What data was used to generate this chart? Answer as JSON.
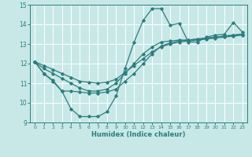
{
  "xlabel": "Humidex (Indice chaleur)",
  "background_color": "#c8e8e8",
  "grid_color": "#ffffff",
  "line_color": "#2d7d7d",
  "xlim": [
    -0.5,
    23.5
  ],
  "ylim": [
    9,
    15
  ],
  "xticks": [
    0,
    1,
    2,
    3,
    4,
    5,
    6,
    7,
    8,
    9,
    10,
    11,
    12,
    13,
    14,
    15,
    16,
    17,
    18,
    19,
    20,
    21,
    22,
    23
  ],
  "yticks": [
    9,
    10,
    11,
    12,
    13,
    14,
    15
  ],
  "series": [
    [
      12.1,
      11.5,
      11.1,
      10.6,
      9.7,
      9.3,
      9.3,
      9.3,
      9.55,
      10.35,
      11.75,
      13.1,
      14.2,
      14.8,
      14.8,
      13.95,
      14.05,
      13.1,
      13.1,
      13.35,
      13.45,
      13.5,
      14.1,
      13.6
    ],
    [
      12.1,
      11.75,
      11.5,
      11.25,
      11.0,
      10.75,
      10.6,
      10.6,
      10.7,
      11.0,
      11.5,
      12.0,
      12.5,
      12.85,
      13.1,
      13.15,
      13.2,
      13.2,
      13.25,
      13.3,
      13.35,
      13.4,
      13.45,
      13.5
    ],
    [
      12.1,
      11.9,
      11.7,
      11.5,
      11.3,
      11.1,
      11.05,
      11.0,
      11.05,
      11.2,
      11.55,
      11.9,
      12.25,
      12.6,
      12.85,
      13.0,
      13.1,
      13.15,
      13.2,
      13.25,
      13.3,
      13.35,
      13.4,
      13.45
    ],
    [
      12.1,
      11.5,
      11.15,
      10.6,
      10.6,
      10.55,
      10.5,
      10.5,
      10.55,
      10.7,
      11.1,
      11.5,
      12.0,
      12.5,
      12.9,
      13.05,
      13.15,
      13.2,
      13.25,
      13.3,
      13.35,
      13.4,
      13.45,
      13.5
    ]
  ]
}
